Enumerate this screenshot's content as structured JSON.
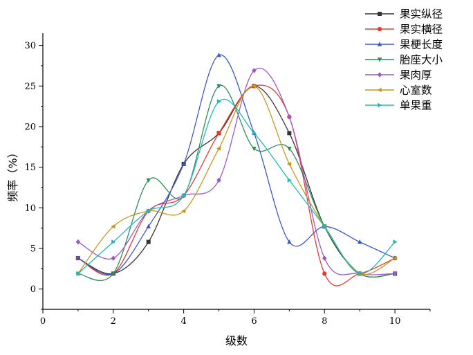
{
  "chart_data": {
    "type": "line",
    "title": "",
    "xlabel": "级数",
    "ylabel": "频率（%）",
    "xlim": [
      0,
      11
    ],
    "ylim": [
      -2.5,
      31.5
    ],
    "x_ticks": [
      0,
      2,
      4,
      6,
      8,
      10
    ],
    "y_ticks": [
      0,
      5,
      10,
      15,
      20,
      25,
      30
    ],
    "smooth": true,
    "grid": false,
    "legend_position": "top-right",
    "x": [
      1,
      2,
      3,
      4,
      5,
      6,
      7,
      8,
      9,
      10
    ],
    "series": [
      {
        "name": "果实纵径",
        "color": "#333333",
        "marker": "square",
        "values": [
          3.8,
          1.9,
          5.8,
          15.4,
          19.2,
          25.0,
          19.2,
          7.7,
          1.9,
          1.9
        ]
      },
      {
        "name": "果实横径",
        "color": "#e8382e",
        "marker": "circle",
        "values": [
          3.8,
          1.9,
          9.6,
          11.5,
          19.2,
          25.0,
          21.2,
          1.9,
          1.9,
          3.8
        ]
      },
      {
        "name": "果梗长度",
        "color": "#3a57c8",
        "marker": "triangle-up",
        "values": [
          3.8,
          1.9,
          7.7,
          15.4,
          28.8,
          19.2,
          5.8,
          7.7,
          5.8,
          3.8
        ]
      },
      {
        "name": "胎座大小",
        "color": "#2e8b57",
        "marker": "triangle-down",
        "values": [
          1.9,
          1.9,
          13.4,
          11.5,
          25.0,
          17.3,
          17.3,
          7.7,
          1.9,
          1.9
        ]
      },
      {
        "name": "果肉厚",
        "color": "#9b59c8",
        "marker": "diamond",
        "values": [
          5.8,
          3.8,
          9.6,
          11.5,
          13.4,
          26.9,
          21.2,
          3.8,
          1.9,
          1.9
        ]
      },
      {
        "name": "心室数",
        "color": "#c8961e",
        "marker": "triangle-left",
        "values": [
          1.9,
          7.7,
          9.6,
          9.6,
          17.3,
          25.0,
          15.4,
          7.7,
          1.9,
          3.8
        ]
      },
      {
        "name": "单果重",
        "color": "#1fb8b8",
        "marker": "triangle-right",
        "values": [
          1.9,
          5.8,
          9.6,
          11.5,
          23.1,
          19.2,
          13.4,
          7.7,
          1.9,
          5.8
        ]
      }
    ]
  }
}
